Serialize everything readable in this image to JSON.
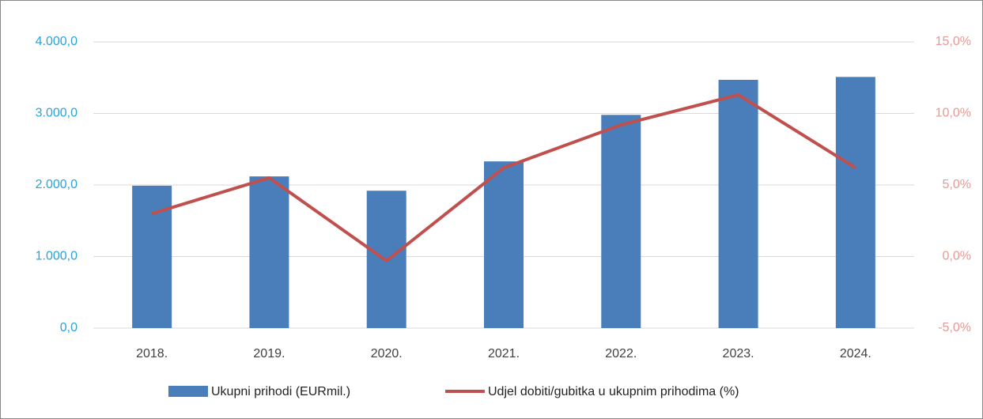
{
  "chart_data": {
    "type": "bar-line",
    "categories": [
      "2018.",
      "2019.",
      "2020.",
      "2021.",
      "2022.",
      "2023.",
      "2024."
    ],
    "series": [
      {
        "name": "Ukupni prihodi (EURmil.)",
        "type": "bar",
        "color": "#4a7ebb",
        "values": [
          1990,
          2120,
          1920,
          2330,
          2980,
          3470,
          3510
        ]
      },
      {
        "name": "Udjel dobiti/gubitka u ukupnim prihodima (%)",
        "type": "line",
        "axis": "y2",
        "color": "#c0504d",
        "values": [
          3.0,
          5.5,
          -0.3,
          6.2,
          9.2,
          11.3,
          6.2
        ]
      }
    ],
    "ylim": [
      0,
      4000
    ],
    "yticks": [
      {
        "value": 0,
        "label": "0,0"
      },
      {
        "value": 1000,
        "label": "1.000,0"
      },
      {
        "value": 2000,
        "label": "2.000,0"
      },
      {
        "value": 3000,
        "label": "3.000,0"
      },
      {
        "value": 4000,
        "label": "4.000,0"
      }
    ],
    "y2lim": [
      -5,
      15
    ],
    "y2ticks": [
      {
        "value": -5,
        "label": "-5,0%"
      },
      {
        "value": 0,
        "label": "0,0%"
      },
      {
        "value": 5,
        "label": "5,0%"
      },
      {
        "value": 10,
        "label": "10,0%"
      },
      {
        "value": 15,
        "label": "15,0%"
      }
    ],
    "grid": true,
    "legend": "bottom"
  }
}
